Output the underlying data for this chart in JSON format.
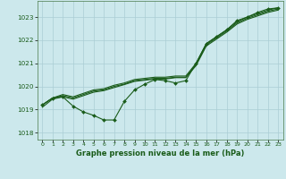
{
  "xlabel": "Graphe pression niveau de la mer (hPa)",
  "background_color": "#cce8ec",
  "grid_color": "#aacdd4",
  "line_color": "#1a5c1a",
  "xlim": [
    -0.5,
    23.5
  ],
  "ylim": [
    1017.7,
    1023.7
  ],
  "yticks": [
    1018,
    1019,
    1020,
    1021,
    1022,
    1023
  ],
  "xticks": [
    0,
    1,
    2,
    3,
    4,
    5,
    6,
    7,
    8,
    9,
    10,
    11,
    12,
    13,
    14,
    15,
    16,
    17,
    18,
    19,
    20,
    21,
    22,
    23
  ],
  "hours": [
    0,
    1,
    2,
    3,
    4,
    5,
    6,
    7,
    8,
    9,
    10,
    11,
    12,
    13,
    14,
    15,
    16,
    17,
    18,
    19,
    20,
    21,
    22,
    23
  ],
  "series_noisy": [
    1019.2,
    1019.5,
    1019.55,
    1019.15,
    1018.9,
    1018.75,
    1018.55,
    1018.55,
    1019.35,
    1019.85,
    1020.1,
    1020.3,
    1020.25,
    1020.15,
    1020.25,
    1021.0,
    1021.85,
    1022.15,
    1022.45,
    1022.85,
    1023.0,
    1023.2,
    1023.35,
    1023.4
  ],
  "series_smooth1": [
    1019.2,
    1019.5,
    1019.65,
    1019.55,
    1019.7,
    1019.85,
    1019.9,
    1020.05,
    1020.15,
    1020.3,
    1020.35,
    1020.4,
    1020.4,
    1020.45,
    1020.45,
    1021.0,
    1021.85,
    1022.15,
    1022.45,
    1022.8,
    1023.0,
    1023.15,
    1023.3,
    1023.4
  ],
  "series_smooth2": [
    1019.2,
    1019.5,
    1019.6,
    1019.5,
    1019.65,
    1019.8,
    1019.85,
    1020.0,
    1020.1,
    1020.25,
    1020.3,
    1020.35,
    1020.35,
    1020.4,
    1020.4,
    1020.95,
    1021.8,
    1022.1,
    1022.4,
    1022.75,
    1022.95,
    1023.1,
    1023.25,
    1023.35
  ],
  "series_smooth3": [
    1019.1,
    1019.45,
    1019.55,
    1019.45,
    1019.6,
    1019.75,
    1019.82,
    1019.95,
    1020.08,
    1020.22,
    1020.27,
    1020.32,
    1020.32,
    1020.38,
    1020.38,
    1020.9,
    1021.75,
    1022.05,
    1022.35,
    1022.7,
    1022.9,
    1023.05,
    1023.2,
    1023.3
  ]
}
